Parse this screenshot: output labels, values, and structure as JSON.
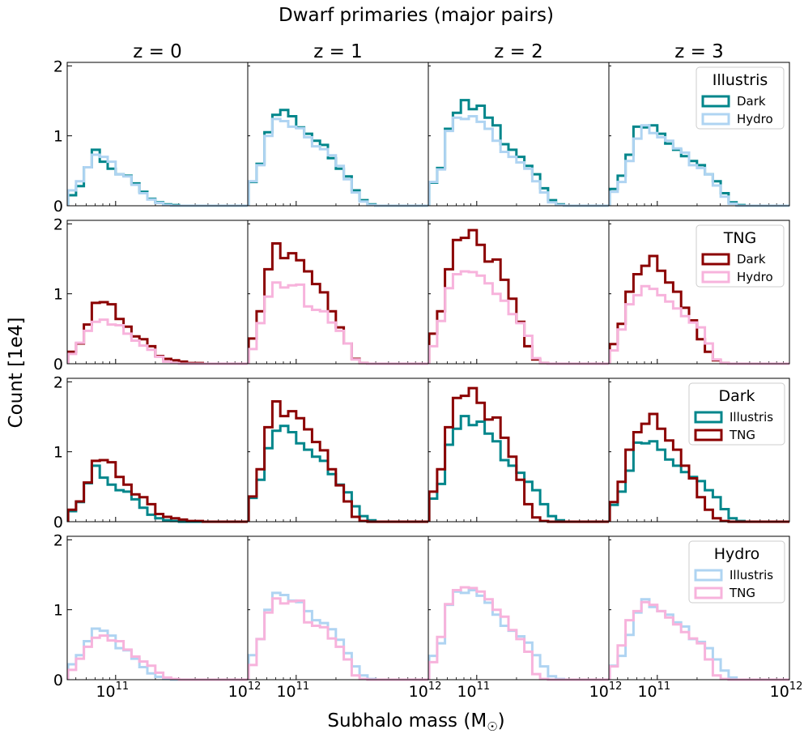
{
  "figure": {
    "title": "Dwarf primaries (major pairs)",
    "xlabel": "Subhalo mass (M",
    "xlabel_sub": "☉",
    "xlabel_close": ")",
    "ylabel": "Count [1e4]",
    "column_titles": [
      "z = 0",
      "z = 1",
      "z = 2",
      "z = 3"
    ],
    "ytick_labels": [
      "0",
      "1",
      "2"
    ],
    "xtick_labels": [
      "10",
      "11",
      "10",
      "12"
    ]
  },
  "colors": {
    "illustris_dark": "#00868b",
    "illustris_hydro": "#afd4f2",
    "tng_dark": "#8b0000",
    "tng_hydro": "#f7b3dc"
  },
  "chart_data": {
    "type": "step-histogram",
    "xscale": "log",
    "xlim": [
      43000000000.0,
      1000000000000.0
    ],
    "ylim": [
      0,
      2.05
    ],
    "y_unit": "1e4",
    "bins_log10": [
      10.64,
      10.7,
      10.76,
      10.82,
      10.88,
      10.94,
      11.0,
      11.06,
      11.12,
      11.18,
      11.24,
      11.3,
      11.36,
      11.42,
      11.48,
      11.54,
      11.6,
      11.66,
      11.72,
      11.78,
      11.84,
      11.9,
      11.96,
      12.0
    ],
    "series_values": {
      "illustris_dark": [
        [
          0.15,
          0.28,
          0.55,
          0.8,
          0.63,
          0.53,
          0.45,
          0.43,
          0.32,
          0.2,
          0.1,
          0.05,
          0.02,
          0.01,
          0.0,
          0.0,
          0.0,
          0.0,
          0.0,
          0.0,
          0.0,
          0.0,
          0.0
        ],
        [
          0.34,
          0.6,
          1.05,
          1.3,
          1.37,
          1.28,
          1.12,
          1.03,
          0.93,
          0.87,
          0.68,
          0.53,
          0.42,
          0.22,
          0.08,
          0.02,
          0.0,
          0.0,
          0.0,
          0.0,
          0.0,
          0.0,
          0.0
        ],
        [
          0.33,
          0.54,
          1.1,
          1.33,
          1.51,
          1.38,
          1.43,
          1.26,
          1.15,
          0.88,
          0.8,
          0.7,
          0.57,
          0.45,
          0.25,
          0.08,
          0.02,
          0.0,
          0.0,
          0.0,
          0.0,
          0.0,
          0.0
        ],
        [
          0.24,
          0.43,
          0.73,
          1.13,
          1.12,
          1.15,
          1.03,
          0.89,
          0.8,
          0.71,
          0.64,
          0.58,
          0.45,
          0.35,
          0.18,
          0.05,
          0.01,
          0.0,
          0.0,
          0.0,
          0.0,
          0.0,
          0.0
        ]
      ],
      "illustris_hydro": [
        [
          0.22,
          0.35,
          0.55,
          0.73,
          0.7,
          0.63,
          0.45,
          0.42,
          0.3,
          0.18,
          0.09,
          0.04,
          0.01,
          0.0,
          0.0,
          0.0,
          0.0,
          0.0,
          0.0,
          0.0,
          0.0,
          0.0,
          0.0
        ],
        [
          0.35,
          0.58,
          1.0,
          1.24,
          1.21,
          1.13,
          1.11,
          0.98,
          0.85,
          0.81,
          0.72,
          0.57,
          0.38,
          0.19,
          0.06,
          0.01,
          0.0,
          0.0,
          0.0,
          0.0,
          0.0,
          0.0,
          0.0
        ],
        [
          0.34,
          0.52,
          1.07,
          1.26,
          1.24,
          1.28,
          1.2,
          1.1,
          0.93,
          0.77,
          0.7,
          0.62,
          0.53,
          0.35,
          0.19,
          0.05,
          0.01,
          0.0,
          0.0,
          0.0,
          0.0,
          0.0,
          0.0
        ],
        [
          0.2,
          0.34,
          0.64,
          0.96,
          1.15,
          1.04,
          0.98,
          0.93,
          0.82,
          0.76,
          0.58,
          0.54,
          0.45,
          0.29,
          0.13,
          0.03,
          0.0,
          0.0,
          0.0,
          0.0,
          0.0,
          0.0,
          0.0
        ]
      ],
      "tng_dark": [
        [
          0.17,
          0.29,
          0.56,
          0.87,
          0.88,
          0.85,
          0.64,
          0.53,
          0.39,
          0.35,
          0.25,
          0.11,
          0.07,
          0.05,
          0.03,
          0.01,
          0.01,
          0.0,
          0.0,
          0.0,
          0.0,
          0.0,
          0.0
        ],
        [
          0.36,
          0.75,
          1.35,
          1.72,
          1.51,
          1.58,
          1.48,
          1.32,
          1.14,
          1.02,
          0.75,
          0.52,
          0.29,
          0.07,
          0.01,
          0.0,
          0.0,
          0.0,
          0.0,
          0.0,
          0.0,
          0.0,
          0.0
        ],
        [
          0.43,
          0.75,
          1.35,
          1.77,
          1.8,
          1.91,
          1.7,
          1.46,
          1.49,
          1.2,
          0.93,
          0.6,
          0.25,
          0.06,
          0.01,
          0.0,
          0.0,
          0.0,
          0.0,
          0.0,
          0.0,
          0.0,
          0.0
        ],
        [
          0.28,
          0.57,
          1.03,
          1.28,
          1.4,
          1.54,
          1.33,
          1.16,
          1.03,
          0.8,
          0.62,
          0.35,
          0.17,
          0.05,
          0.01,
          0.0,
          0.0,
          0.0,
          0.0,
          0.0,
          0.0,
          0.0,
          0.0
        ]
      ],
      "tng_hydro": [
        [
          0.14,
          0.3,
          0.47,
          0.6,
          0.63,
          0.56,
          0.55,
          0.43,
          0.33,
          0.26,
          0.2,
          0.1,
          0.03,
          0.01,
          0.0,
          0.0,
          0.0,
          0.0,
          0.0,
          0.0,
          0.0,
          0.0,
          0.0
        ],
        [
          0.21,
          0.58,
          0.96,
          1.16,
          1.09,
          1.12,
          1.13,
          0.82,
          0.77,
          0.75,
          0.59,
          0.47,
          0.29,
          0.06,
          0.01,
          0.0,
          0.0,
          0.0,
          0.0,
          0.0,
          0.0,
          0.0,
          0.0
        ],
        [
          0.25,
          0.61,
          1.08,
          1.28,
          1.32,
          1.31,
          1.26,
          1.15,
          1.0,
          0.9,
          0.71,
          0.58,
          0.4,
          0.08,
          0.01,
          0.0,
          0.0,
          0.0,
          0.0,
          0.0,
          0.0,
          0.0,
          0.0
        ],
        [
          0.19,
          0.49,
          0.85,
          0.98,
          1.11,
          1.07,
          0.98,
          0.89,
          0.79,
          0.68,
          0.59,
          0.52,
          0.29,
          0.06,
          0.01,
          0.0,
          0.0,
          0.0,
          0.0,
          0.0,
          0.0,
          0.0,
          0.0
        ]
      ]
    },
    "rows": [
      {
        "legend_title": "Illustris",
        "series": [
          {
            "key": "illustris_dark",
            "label": "Dark"
          },
          {
            "key": "illustris_hydro",
            "label": "Hydro"
          }
        ]
      },
      {
        "legend_title": "TNG",
        "series": [
          {
            "key": "tng_dark",
            "label": "Dark"
          },
          {
            "key": "tng_hydro",
            "label": "Hydro"
          }
        ]
      },
      {
        "legend_title": "Dark",
        "series": [
          {
            "key": "illustris_dark",
            "label": "Illustris"
          },
          {
            "key": "tng_dark",
            "label": "TNG"
          }
        ]
      },
      {
        "legend_title": "Hydro",
        "series": [
          {
            "key": "illustris_hydro",
            "label": "Illustris"
          },
          {
            "key": "tng_hydro",
            "label": "TNG"
          }
        ]
      }
    ],
    "legend_placement": "top-right of last column"
  }
}
